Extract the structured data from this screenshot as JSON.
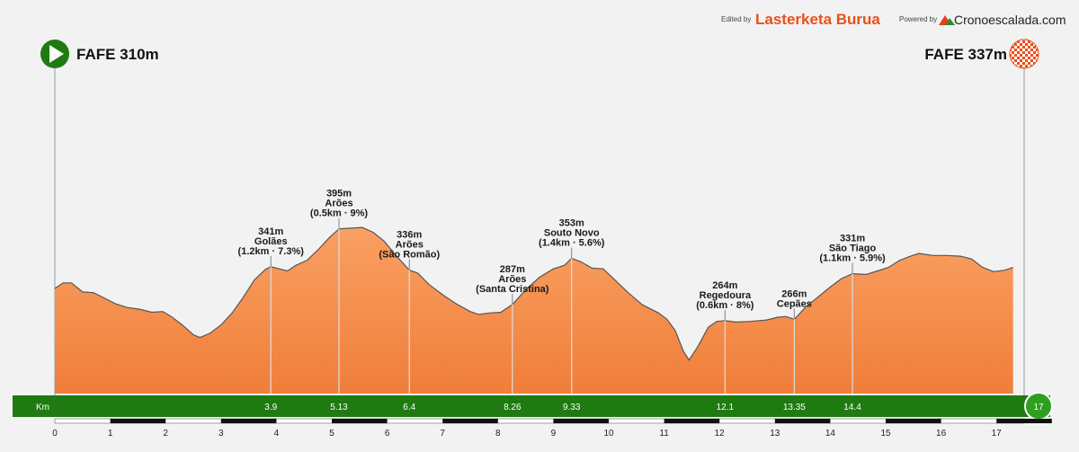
{
  "credits": {
    "edited_by": "Edited by",
    "brand": "Lasterketa Burua",
    "powered_by": "Powered by",
    "site": "Cronoescalada.com"
  },
  "start": {
    "label": "FAFE 310m"
  },
  "finish": {
    "label": "FAFE 337m"
  },
  "colors": {
    "profile": "#f07e3a",
    "profile_light": "#f9a062",
    "profile_edge": "#555555",
    "band": "#1f7a12",
    "background": "#f2f2f2"
  },
  "chart_data": {
    "type": "area",
    "title": "",
    "xlabel": "Km",
    "ylabel": "",
    "xlim": [
      0,
      17.5
    ],
    "ylim": [
      160,
      450
    ],
    "distance_unit": "Km",
    "total_km": "17",
    "profile": [
      [
        0.0,
        310
      ],
      [
        0.15,
        318
      ],
      [
        0.3,
        318
      ],
      [
        0.5,
        305
      ],
      [
        0.7,
        304
      ],
      [
        0.9,
        296
      ],
      [
        1.1,
        288
      ],
      [
        1.3,
        283
      ],
      [
        1.55,
        280
      ],
      [
        1.75,
        276
      ],
      [
        1.95,
        277
      ],
      [
        2.1,
        270
      ],
      [
        2.3,
        258
      ],
      [
        2.5,
        244
      ],
      [
        2.62,
        240
      ],
      [
        2.8,
        246
      ],
      [
        3.0,
        258
      ],
      [
        3.2,
        275
      ],
      [
        3.4,
        297
      ],
      [
        3.6,
        322
      ],
      [
        3.8,
        337
      ],
      [
        3.9,
        341
      ],
      [
        4.1,
        337
      ],
      [
        4.2,
        335
      ],
      [
        4.35,
        343
      ],
      [
        4.55,
        350
      ],
      [
        4.75,
        365
      ],
      [
        4.95,
        382
      ],
      [
        5.13,
        395
      ],
      [
        5.35,
        396
      ],
      [
        5.55,
        397
      ],
      [
        5.75,
        390
      ],
      [
        5.95,
        377
      ],
      [
        6.15,
        358
      ],
      [
        6.4,
        336
      ],
      [
        6.55,
        332
      ],
      [
        6.75,
        316
      ],
      [
        7.0,
        301
      ],
      [
        7.25,
        288
      ],
      [
        7.5,
        277
      ],
      [
        7.65,
        273
      ],
      [
        7.85,
        275
      ],
      [
        8.05,
        276
      ],
      [
        8.26,
        287
      ],
      [
        8.5,
        308
      ],
      [
        8.75,
        326
      ],
      [
        9.0,
        338
      ],
      [
        9.2,
        343
      ],
      [
        9.33,
        353
      ],
      [
        9.5,
        348
      ],
      [
        9.7,
        339
      ],
      [
        9.9,
        338
      ],
      [
        10.1,
        323
      ],
      [
        10.35,
        304
      ],
      [
        10.6,
        287
      ],
      [
        10.9,
        275
      ],
      [
        11.05,
        266
      ],
      [
        11.2,
        250
      ],
      [
        11.35,
        220
      ],
      [
        11.45,
        208
      ],
      [
        11.6,
        226
      ],
      [
        11.8,
        255
      ],
      [
        11.95,
        263
      ],
      [
        12.1,
        264
      ],
      [
        12.3,
        262
      ],
      [
        12.55,
        263
      ],
      [
        12.85,
        265
      ],
      [
        13.05,
        269
      ],
      [
        13.2,
        270
      ],
      [
        13.35,
        266
      ],
      [
        13.55,
        283
      ],
      [
        13.75,
        296
      ],
      [
        14.0,
        312
      ],
      [
        14.2,
        324
      ],
      [
        14.4,
        331
      ],
      [
        14.65,
        330
      ],
      [
        14.85,
        335
      ],
      [
        15.05,
        340
      ],
      [
        15.25,
        350
      ],
      [
        15.45,
        356
      ],
      [
        15.6,
        360
      ],
      [
        15.85,
        357
      ],
      [
        16.1,
        357
      ],
      [
        16.35,
        356
      ],
      [
        16.55,
        352
      ],
      [
        16.75,
        340
      ],
      [
        16.95,
        334
      ],
      [
        17.15,
        336
      ],
      [
        17.3,
        340
      ]
    ],
    "annotations": [
      {
        "km": 3.9,
        "lines": [
          "341m",
          "Golães",
          "(1.2km · 7.3%)"
        ]
      },
      {
        "km": 5.13,
        "lines": [
          "395m",
          "Arões",
          "(0.5km · 9%)"
        ]
      },
      {
        "km": 6.4,
        "lines": [
          "336m",
          "Arões",
          "(São Romão)"
        ]
      },
      {
        "km": 8.26,
        "lines": [
          "287m",
          "Arões",
          "(Santa Cristina)"
        ]
      },
      {
        "km": 9.33,
        "lines": [
          "353m",
          "Souto Novo",
          "(1.4km · 5.6%)"
        ]
      },
      {
        "km": 12.1,
        "lines": [
          "264m",
          "Regedoura",
          "(0.6km · 8%)"
        ]
      },
      {
        "km": 13.35,
        "lines": [
          "266m",
          "Cepães"
        ]
      },
      {
        "km": 14.4,
        "lines": [
          "331m",
          "São Tiago",
          "(1.1km · 5.9%)"
        ]
      }
    ],
    "band_km_labels": [
      "3.9",
      "5.13",
      "6.4",
      "8.26",
      "9.33",
      "12.1",
      "13.35",
      "14.4"
    ],
    "axis_ticks": [
      "0",
      "1",
      "2",
      "3",
      "4",
      "5",
      "6",
      "7",
      "8",
      "9",
      "10",
      "11",
      "12",
      "13",
      "14",
      "15",
      "16",
      "17"
    ]
  }
}
